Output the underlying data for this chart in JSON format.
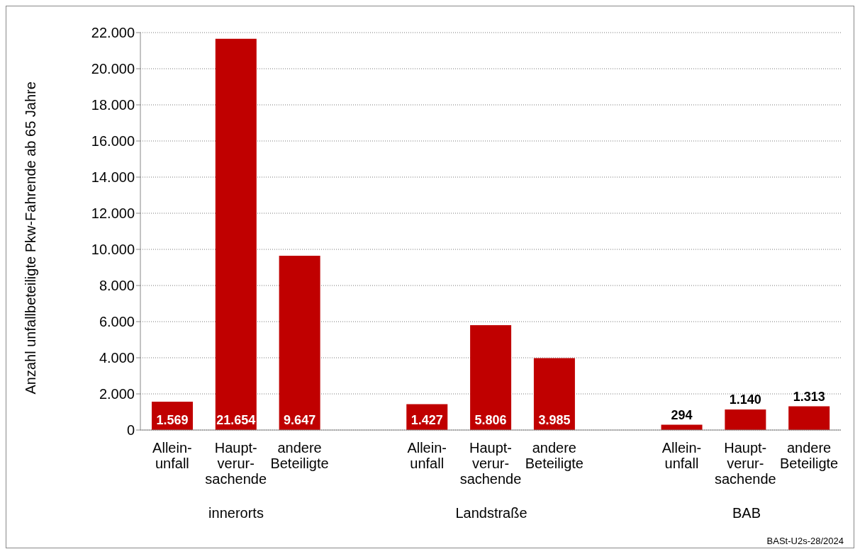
{
  "chart_data": {
    "type": "bar",
    "ylabel": "Anzahl unfallbeteiligte Pkw-Fahrende ab 65 Jahre",
    "categories": [
      "Allein-\nunfall",
      "Haupt-\nverur-\nsachende",
      "andere\nBeteiligte",
      null,
      "Allein-\nunfall",
      "Haupt-\nverur-\nsachende",
      "andere\nBeteiligte",
      null,
      "Allein-\nunfall",
      "Haupt-\nverur-\nsachende",
      "andere\nBeteiligte"
    ],
    "values": [
      1569,
      21654,
      9647,
      null,
      1427,
      5806,
      3985,
      null,
      294,
      1140,
      1313
    ],
    "value_labels": [
      "1.569",
      "21.654",
      "9.647",
      null,
      "1.427",
      "5.806",
      "3.985",
      null,
      "294",
      "1.140",
      "1.313"
    ],
    "color": "#c00000",
    "ylim": [
      0,
      22000
    ],
    "yticks": [
      0,
      {
        "value": 2000,
        "label": "2.000"
      },
      {
        "value": 4000,
        "label": "4.000"
      },
      {
        "value": 6000,
        "label": "6.000"
      },
      {
        "value": 8000,
        "label": "8.000"
      },
      {
        "value": 10000,
        "label": "10.000"
      },
      {
        "value": 12000,
        "label": "12.000"
      },
      {
        "value": 14000,
        "label": "14.000"
      },
      {
        "value": 16000,
        "label": "16.000"
      },
      {
        "value": 18000,
        "label": "18.000"
      },
      {
        "value": 20000,
        "label": "20.000"
      },
      {
        "value": 22000,
        "label": "22.000"
      }
    ],
    "grid": "y",
    "annotations": [
      "innerorts",
      "Landstraße",
      "BAB",
      "BASt-U2s-28/2024"
    ]
  }
}
